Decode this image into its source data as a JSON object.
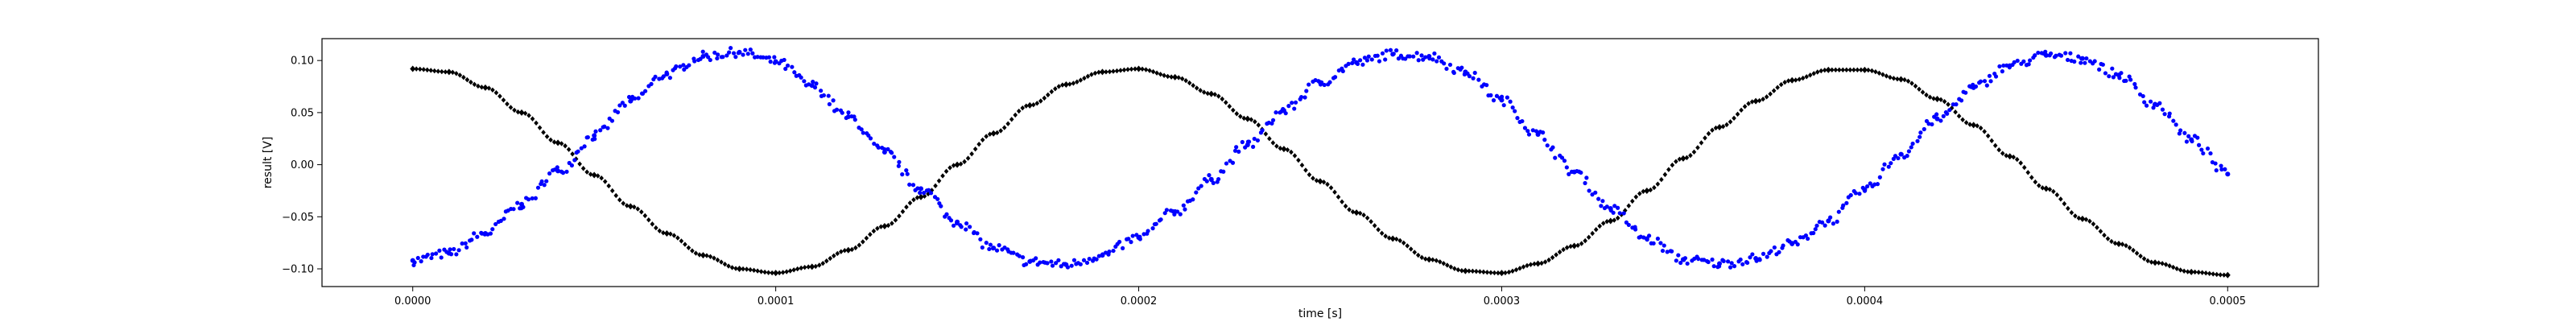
{
  "chart_data": {
    "type": "scatter",
    "title": "",
    "xlabel": "time [s]",
    "ylabel": "result [V]",
    "xlim": [
      -2.5e-05,
      0.000525
    ],
    "ylim": [
      -0.117,
      0.121
    ],
    "x_ticks": [
      0.0,
      0.0001,
      0.0002,
      0.0003,
      0.0004,
      0.0005
    ],
    "x_tick_labels": [
      "0.0000",
      "0.0001",
      "0.0002",
      "0.0003",
      "0.0004",
      "0.0005"
    ],
    "y_ticks": [
      0.1,
      0.05,
      0.0,
      -0.05,
      -0.1
    ],
    "y_tick_labels": [
      "0.10",
      "0.05",
      "0.00",
      "−0.05",
      "−0.10"
    ],
    "grid": false,
    "legend": "none",
    "series": [
      {
        "color": "#000000",
        "marker": "diamond",
        "x": [
          0.0,
          1e-05,
          2e-05,
          3e-05,
          4e-05,
          5e-05,
          6e-05,
          7e-05,
          8e-05,
          9e-05,
          0.0001,
          0.00011,
          0.00012,
          0.00013,
          0.00014,
          0.00015,
          0.00016,
          0.00017,
          0.00018,
          0.00019,
          0.0002,
          0.00021,
          0.00022,
          0.00023,
          0.00024,
          0.00025,
          0.00026,
          0.00027,
          0.00028,
          0.00029,
          0.0003,
          0.00031,
          0.00032,
          0.00033,
          0.00034,
          0.00035,
          0.00036,
          0.00037,
          0.00038,
          0.00039,
          0.0004,
          0.00041,
          0.00042,
          0.00043,
          0.00044,
          0.00045,
          0.00046,
          0.00047,
          0.00048,
          0.00049,
          0.0005
        ],
        "y": [
          0.092,
          0.089,
          0.074,
          0.05,
          0.021,
          -0.01,
          -0.04,
          -0.066,
          -0.087,
          -0.1,
          -0.104,
          -0.098,
          -0.082,
          -0.059,
          -0.031,
          0.0,
          0.03,
          0.057,
          0.077,
          0.089,
          0.092,
          0.084,
          0.068,
          0.044,
          0.015,
          -0.016,
          -0.046,
          -0.071,
          -0.091,
          -0.102,
          -0.104,
          -0.095,
          -0.078,
          -0.054,
          -0.025,
          0.006,
          0.036,
          0.061,
          0.081,
          0.091,
          0.091,
          0.082,
          0.063,
          0.038,
          0.008,
          -0.023,
          -0.052,
          -0.076,
          -0.094,
          -0.103,
          -0.106
        ]
      },
      {
        "color": "#0000ff",
        "marker": "dot",
        "x": [
          0.0,
          1e-05,
          2e-05,
          3e-05,
          4e-05,
          5e-05,
          6e-05,
          7e-05,
          8e-05,
          9e-05,
          0.0001,
          0.00011,
          0.00012,
          0.00013,
          0.00014,
          0.00015,
          0.00016,
          0.00017,
          0.00018,
          0.00019,
          0.0002,
          0.00021,
          0.00022,
          0.00023,
          0.00024,
          0.00025,
          0.00026,
          0.00027,
          0.00028,
          0.00029,
          0.0003,
          0.00031,
          0.00032,
          0.00033,
          0.00034,
          0.00035,
          0.00036,
          0.00037,
          0.00038,
          0.00039,
          0.0004,
          0.00041,
          0.00042,
          0.00043,
          0.00044,
          0.00045,
          0.00046,
          0.00047,
          0.00048,
          0.00049,
          0.0005
        ],
        "y": [
          -0.092,
          -0.085,
          -0.066,
          -0.038,
          -0.006,
          0.028,
          0.061,
          0.087,
          0.104,
          0.108,
          0.099,
          0.076,
          0.046,
          0.012,
          -0.023,
          -0.055,
          -0.08,
          -0.093,
          -0.096,
          -0.087,
          -0.07,
          -0.045,
          -0.014,
          0.019,
          0.052,
          0.079,
          0.098,
          0.106,
          0.104,
          0.089,
          0.062,
          0.029,
          -0.007,
          -0.042,
          -0.071,
          -0.091,
          -0.095,
          -0.09,
          -0.076,
          -0.054,
          -0.024,
          0.01,
          0.044,
          0.074,
          0.095,
          0.105,
          0.102,
          0.086,
          0.058,
          0.024,
          -0.009
        ]
      }
    ]
  }
}
